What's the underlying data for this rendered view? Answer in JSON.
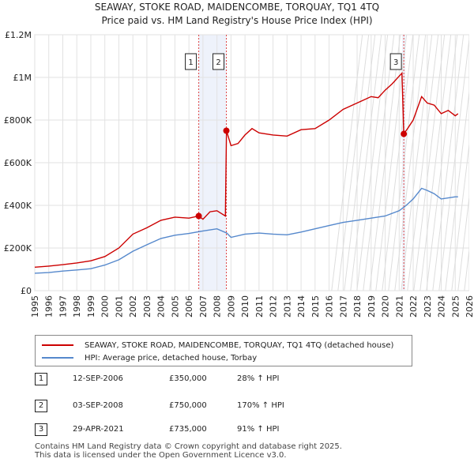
{
  "chart_data": {
    "type": "line",
    "title": "SEAWAY, STOKE ROAD, MAIDENCOMBE, TORQUAY, TQ1 4TQ",
    "subtitle": "Price paid vs. HM Land Registry's House Price Index (HPI)",
    "xlim": [
      1995,
      2026
    ],
    "ylim": [
      0,
      1200000
    ],
    "x_ticks": [
      "1995",
      "1996",
      "1997",
      "1998",
      "1999",
      "2000",
      "2001",
      "2002",
      "2003",
      "2004",
      "2005",
      "2006",
      "2007",
      "2008",
      "2009",
      "2010",
      "2011",
      "2012",
      "2013",
      "2014",
      "2015",
      "2016",
      "2017",
      "2018",
      "2019",
      "2020",
      "2021",
      "2022",
      "2023",
      "2024",
      "2025",
      "2026"
    ],
    "y_ticks": [
      {
        "value": 0,
        "label": "£0"
      },
      {
        "value": 200000,
        "label": "£200K"
      },
      {
        "value": 400000,
        "label": "£400K"
      },
      {
        "value": 600000,
        "label": "£600K"
      },
      {
        "value": 800000,
        "label": "£800K"
      },
      {
        "value": 1000000,
        "label": "£1M"
      },
      {
        "value": 1200000,
        "label": "£1.2M"
      }
    ],
    "series": [
      {
        "name": "SEAWAY, STOKE ROAD, MAIDENCOMBE, TORQUAY, TQ1 4TQ (detached house)",
        "color": "#cc0000",
        "x": [
          1995,
          1996,
          1997,
          1998,
          1999,
          2000,
          2001,
          2002,
          2003,
          2004,
          2005,
          2006,
          2006.7,
          2007,
          2007.5,
          2008,
          2008.6,
          2008.68,
          2009,
          2009.5,
          2010,
          2010.5,
          2011,
          2012,
          2013,
          2014,
          2015,
          2016,
          2017,
          2018,
          2019,
          2019.5,
          2020,
          2020.5,
          2021.2,
          2021.33,
          2021.6,
          2022,
          2022.6,
          2023,
          2023.5,
          2024,
          2024.5,
          2025,
          2025.2
        ],
        "y": [
          110000,
          115000,
          122000,
          130000,
          140000,
          160000,
          200000,
          265000,
          295000,
          330000,
          345000,
          340000,
          350000,
          335000,
          370000,
          375000,
          350000,
          750000,
          680000,
          690000,
          730000,
          760000,
          740000,
          730000,
          725000,
          755000,
          760000,
          800000,
          850000,
          880000,
          910000,
          905000,
          940000,
          970000,
          1020000,
          735000,
          760000,
          800000,
          910000,
          880000,
          870000,
          830000,
          845000,
          820000,
          830000
        ]
      },
      {
        "name": "HPI: Average price, detached house, Torbay",
        "color": "#5588cc",
        "x": [
          1995,
          1996,
          1997,
          1998,
          1999,
          2000,
          2001,
          2002,
          2003,
          2004,
          2005,
          2006,
          2007,
          2008,
          2008.7,
          2009,
          2010,
          2011,
          2012,
          2013,
          2014,
          2015,
          2016,
          2017,
          2018,
          2019,
          2020,
          2021,
          2021.5,
          2022,
          2022.6,
          2023,
          2023.5,
          2024,
          2025,
          2025.2
        ],
        "y": [
          82000,
          85000,
          92000,
          97000,
          103000,
          120000,
          145000,
          185000,
          215000,
          245000,
          260000,
          268000,
          280000,
          290000,
          270000,
          250000,
          265000,
          270000,
          265000,
          262000,
          275000,
          290000,
          305000,
          320000,
          330000,
          340000,
          350000,
          375000,
          400000,
          430000,
          480000,
          470000,
          455000,
          430000,
          440000,
          440000
        ]
      }
    ],
    "sales": [
      {
        "num": "1",
        "year": 2006.7,
        "value": 350000,
        "date": "12-SEP-2006",
        "price": "£350,000",
        "hpi": "28% ↑ HPI"
      },
      {
        "num": "2",
        "year": 2008.67,
        "value": 750000,
        "date": "03-SEP-2008",
        "price": "£750,000",
        "hpi": "170% ↑ HPI"
      },
      {
        "num": "3",
        "year": 2021.33,
        "value": 735000,
        "date": "29-APR-2021",
        "price": "£735,000",
        "hpi": "91% ↑ HPI"
      }
    ],
    "legend": [
      {
        "label": "SEAWAY, STOKE ROAD, MAIDENCOMBE, TORQUAY, TQ1 4TQ (detached house)",
        "color": "#cc0000"
      },
      {
        "label": "HPI: Average price, detached house, Torbay",
        "color": "#5588cc"
      }
    ],
    "grid": true
  },
  "footer": {
    "line1": "Contains HM Land Registry data © Crown copyright and database right 2025.",
    "line2": "This data is licensed under the Open Government Licence v3.0."
  }
}
